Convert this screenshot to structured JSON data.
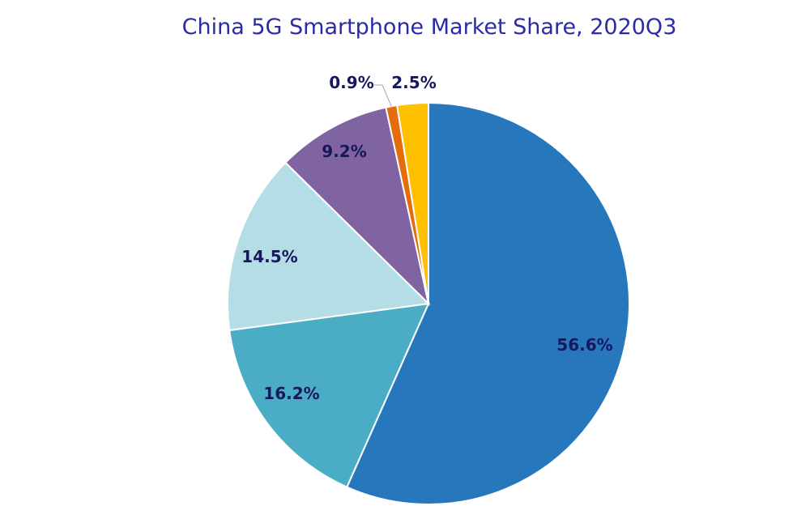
{
  "chart_data": {
    "type": "pie",
    "title": "China 5G Smartphone Market Share, 2020Q3",
    "start_angle_deg": 0,
    "direction": "clockwise",
    "slices": [
      {
        "value": 56.6,
        "label": "56.6%",
        "color": "#2777bd"
      },
      {
        "value": 16.2,
        "label": "16.2%",
        "color": "#4bacc6"
      },
      {
        "value": 14.5,
        "label": "14.5%",
        "color": "#b4dde6"
      },
      {
        "value": 9.2,
        "label": "9.2%",
        "color": "#8064a2"
      },
      {
        "value": 0.9,
        "label": "0.9%",
        "color": "#e46c0a"
      },
      {
        "value": 2.5,
        "label": "2.5%",
        "color": "#ffc000"
      }
    ]
  }
}
